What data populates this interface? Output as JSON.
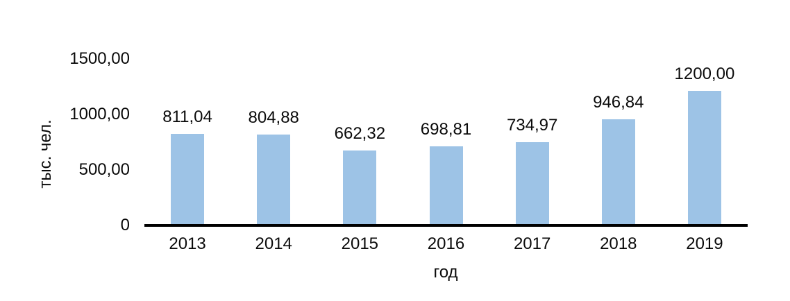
{
  "chart_data": {
    "type": "bar",
    "title": "",
    "categories": [
      "2013",
      "2014",
      "2015",
      "2016",
      "2017",
      "2018",
      "2019"
    ],
    "values": [
      811.04,
      804.88,
      662.32,
      698.81,
      734.97,
      946.84,
      1200.0
    ],
    "value_labels": [
      "811,04",
      "804,88",
      "662,32",
      "698,81",
      "734,97",
      "946,84",
      "1200,00"
    ],
    "xlabel": "год",
    "ylabel": "тыс. чел.",
    "ylim": [
      0,
      1500
    ],
    "yticks": [
      {
        "value": 0,
        "label": "0"
      },
      {
        "value": 500,
        "label": "500,00"
      },
      {
        "value": 1000,
        "label": "1000,00"
      },
      {
        "value": 1500,
        "label": "1500,00"
      }
    ],
    "grid": false,
    "legend": false,
    "colors": {
      "bar_fill": "#9dc3e6",
      "axis_line": "#000000",
      "text": "#0a0a0a",
      "background": "#ffffff"
    }
  }
}
